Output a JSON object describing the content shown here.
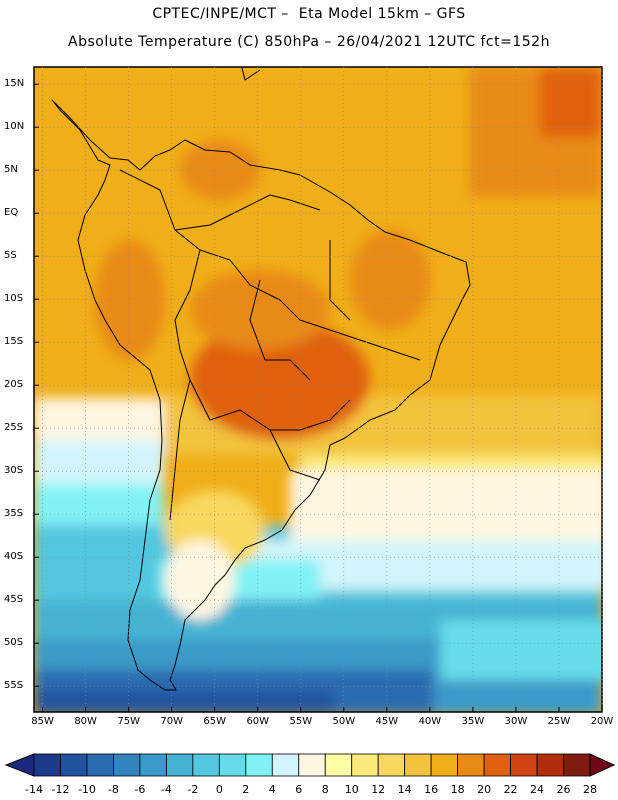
{
  "header": {
    "line1": "CPTEC/INPE/MCT –  Eta Model 15km – GFS",
    "line2": "Absolute Temperature (C) 850hPa – 26/04/2021 12UTC fct=152h"
  },
  "map": {
    "variable": "Absolute Temperature (C) 850hPa",
    "lat_labels": [
      "15N",
      "10N",
      "5N",
      "EQ",
      "5S",
      "10S",
      "15S",
      "20S",
      "25S",
      "30S",
      "35S",
      "40S",
      "45S",
      "50S",
      "55S"
    ],
    "lon_labels": [
      "85W",
      "80W",
      "75W",
      "70W",
      "65W",
      "60W",
      "55W",
      "50W",
      "45W",
      "40W",
      "35W",
      "30W",
      "25W",
      "20W"
    ],
    "lat_values": [
      15,
      10,
      5,
      0,
      -5,
      -10,
      -15,
      -20,
      -25,
      -30,
      -35,
      -40,
      -45,
      -50,
      -55
    ],
    "lon_values": [
      -85,
      -80,
      -75,
      -70,
      -65,
      -60,
      -55,
      -50,
      -45,
      -40,
      -35,
      -30,
      -25,
      -20
    ],
    "gridlines": "dotted",
    "extent": {
      "lon_min": -86,
      "lon_max": -20,
      "lat_min": -58,
      "lat_max": 17
    }
  },
  "colorbar": {
    "labels": [
      "-14",
      "-12",
      "-10",
      "-8",
      "-6",
      "-4",
      "-2",
      "0",
      "2",
      "4",
      "6",
      "8",
      "10",
      "12",
      "14",
      "16",
      "18",
      "20",
      "22",
      "24",
      "26",
      "28"
    ],
    "colors": [
      "#1b3a8c",
      "#21549f",
      "#2a6cb0",
      "#3283be",
      "#3a9ac9",
      "#44b2d3",
      "#53c7df",
      "#66dcea",
      "#80f2f5",
      "#d2f5fb",
      "#fff6e2",
      "#fffca6",
      "#fbea7a",
      "#f8d85e",
      "#f3c33e",
      "#f0ae18",
      "#e98a16",
      "#e06010",
      "#cf4410",
      "#b22d0b",
      "#7e1a10"
    ],
    "under_color": "#1b2a80",
    "over_color": "#6f0818"
  }
}
